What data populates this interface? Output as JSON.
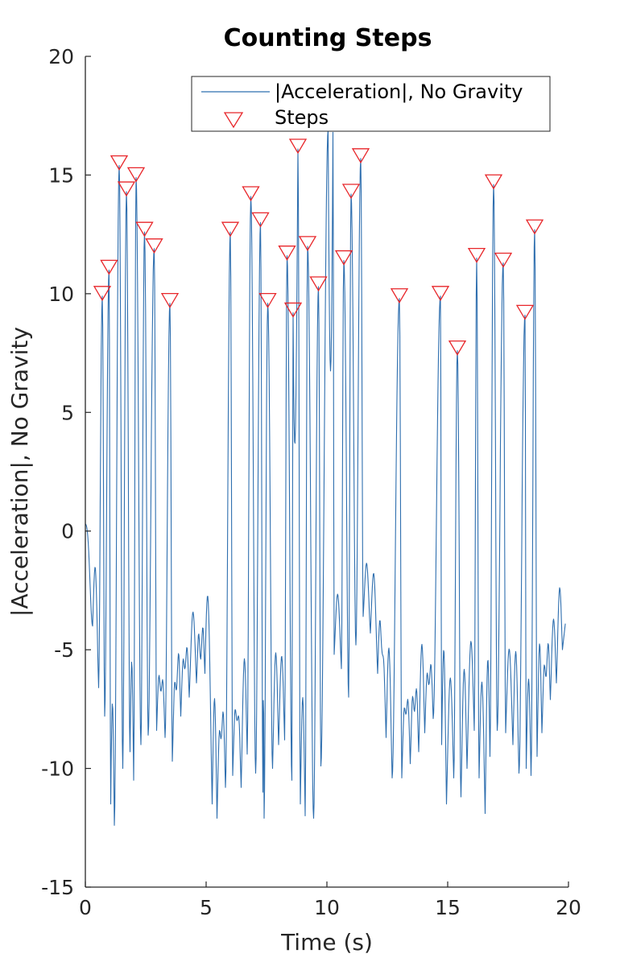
{
  "chart_data": {
    "type": "line",
    "title": "Counting Steps",
    "xlabel": "Time (s)",
    "ylabel": "|Acceleration|, No Gravity",
    "xlim": [
      0,
      20
    ],
    "ylim": [
      -15,
      20
    ],
    "xticks": [
      "0",
      "5",
      "10",
      "15",
      "20"
    ],
    "yticks": [
      "20",
      "15",
      "10",
      "5",
      "0",
      "-5",
      "-10",
      "-15"
    ],
    "grid": false,
    "legend": {
      "placement": "top-right",
      "entries": [
        "|Acceleration|, No Gravity",
        "Steps"
      ]
    },
    "colors": {
      "signal": "#2f6faf",
      "steps": "#e8262a",
      "axis": "#262626"
    },
    "series": [
      {
        "name": "|Acceleration|, No Gravity",
        "type": "line",
        "sample_rate_hz": 50,
        "peaks": [
          [
            0.7,
            9.9
          ],
          [
            0.98,
            11.0
          ],
          [
            1.4,
            15.4
          ],
          [
            1.7,
            14.3
          ],
          [
            2.1,
            14.9
          ],
          [
            2.45,
            12.6
          ],
          [
            2.85,
            11.9
          ],
          [
            3.5,
            9.6
          ],
          [
            6.0,
            12.6
          ],
          [
            6.85,
            14.1
          ],
          [
            7.25,
            13.0
          ],
          [
            7.55,
            9.6
          ],
          [
            8.35,
            11.6
          ],
          [
            8.6,
            9.2
          ],
          [
            8.8,
            16.1
          ],
          [
            9.2,
            12.0
          ],
          [
            9.65,
            10.3
          ],
          [
            10.05,
            16.9
          ],
          [
            10.25,
            16.8
          ],
          [
            10.7,
            11.4
          ],
          [
            11.0,
            14.2
          ],
          [
            11.4,
            15.7
          ],
          [
            13.0,
            9.8
          ],
          [
            14.7,
            9.9
          ],
          [
            15.4,
            7.6
          ],
          [
            16.2,
            11.5
          ],
          [
            16.9,
            14.6
          ],
          [
            17.3,
            11.3
          ],
          [
            18.2,
            9.1
          ],
          [
            18.6,
            12.7
          ]
        ],
        "troughs": [
          [
            0.3,
            -4.0
          ],
          [
            0.55,
            -6.6
          ],
          [
            0.8,
            -7.8
          ],
          [
            1.05,
            -11.5
          ],
          [
            1.2,
            -12.4
          ],
          [
            1.55,
            -10.0
          ],
          [
            1.85,
            -9.3
          ],
          [
            2.0,
            -10.5
          ],
          [
            2.3,
            -9.0
          ],
          [
            2.6,
            -8.6
          ],
          [
            2.95,
            -8.4
          ],
          [
            3.3,
            -8.7
          ],
          [
            3.6,
            -9.7
          ],
          [
            3.95,
            -7.8
          ],
          [
            4.3,
            -7.0
          ],
          [
            4.6,
            -6.4
          ],
          [
            4.95,
            -6.0
          ],
          [
            5.25,
            -11.5
          ],
          [
            5.45,
            -12.1
          ],
          [
            5.8,
            -10.8
          ],
          [
            6.1,
            -10.3
          ],
          [
            6.45,
            -10.8
          ],
          [
            6.7,
            -9.4
          ],
          [
            7.05,
            -10.2
          ],
          [
            7.35,
            -11.0
          ],
          [
            7.4,
            -12.1
          ],
          [
            7.75,
            -10.0
          ],
          [
            8.0,
            -9.0
          ],
          [
            8.25,
            -8.8
          ],
          [
            8.55,
            -10.5
          ],
          [
            8.9,
            -11.5
          ],
          [
            9.1,
            -12.0
          ],
          [
            9.45,
            -12.1
          ],
          [
            9.75,
            -9.9
          ],
          [
            10.3,
            -5.2
          ],
          [
            10.6,
            -5.8
          ],
          [
            10.9,
            -7.0
          ],
          [
            11.2,
            -4.8
          ],
          [
            11.5,
            -3.6
          ],
          [
            11.8,
            -4.3
          ],
          [
            12.1,
            -6.0
          ],
          [
            12.45,
            -8.7
          ],
          [
            12.7,
            -10.4
          ],
          [
            13.1,
            -10.4
          ],
          [
            13.45,
            -9.8
          ],
          [
            13.8,
            -9.3
          ],
          [
            14.05,
            -8.5
          ],
          [
            14.4,
            -7.9
          ],
          [
            14.75,
            -9.0
          ],
          [
            14.95,
            -11.5
          ],
          [
            15.25,
            -10.4
          ],
          [
            15.55,
            -11.2
          ],
          [
            15.8,
            -10.0
          ],
          [
            16.1,
            -8.4
          ],
          [
            16.3,
            -10.4
          ],
          [
            16.55,
            -11.9
          ],
          [
            16.75,
            -9.5
          ],
          [
            17.05,
            -8.4
          ],
          [
            17.4,
            -8.5
          ],
          [
            17.7,
            -9.0
          ],
          [
            17.95,
            -10.2
          ],
          [
            18.25,
            -10.0
          ],
          [
            18.45,
            -10.3
          ],
          [
            18.7,
            -9.5
          ],
          [
            18.9,
            -8.5
          ],
          [
            19.25,
            -7.1
          ],
          [
            19.5,
            -6.4
          ],
          [
            19.75,
            -5.0
          ]
        ]
      },
      {
        "name": "Steps",
        "type": "scatter",
        "marker": "triangle-down",
        "x": [
          0.7,
          0.98,
          1.4,
          1.7,
          2.1,
          2.45,
          2.85,
          3.5,
          6.0,
          6.85,
          7.25,
          7.55,
          8.35,
          8.6,
          8.8,
          9.2,
          9.65,
          10.7,
          11.0,
          11.4,
          13.0,
          14.7,
          15.4,
          16.2,
          16.9,
          17.3,
          18.2,
          18.6
        ],
        "y": [
          9.9,
          11.0,
          15.4,
          14.3,
          14.9,
          12.6,
          11.9,
          9.6,
          12.6,
          14.1,
          13.0,
          9.6,
          11.6,
          9.2,
          16.1,
          12.0,
          10.3,
          11.4,
          14.2,
          15.7,
          9.8,
          9.9,
          7.6,
          11.5,
          14.6,
          11.3,
          9.1,
          12.7
        ]
      }
    ]
  }
}
